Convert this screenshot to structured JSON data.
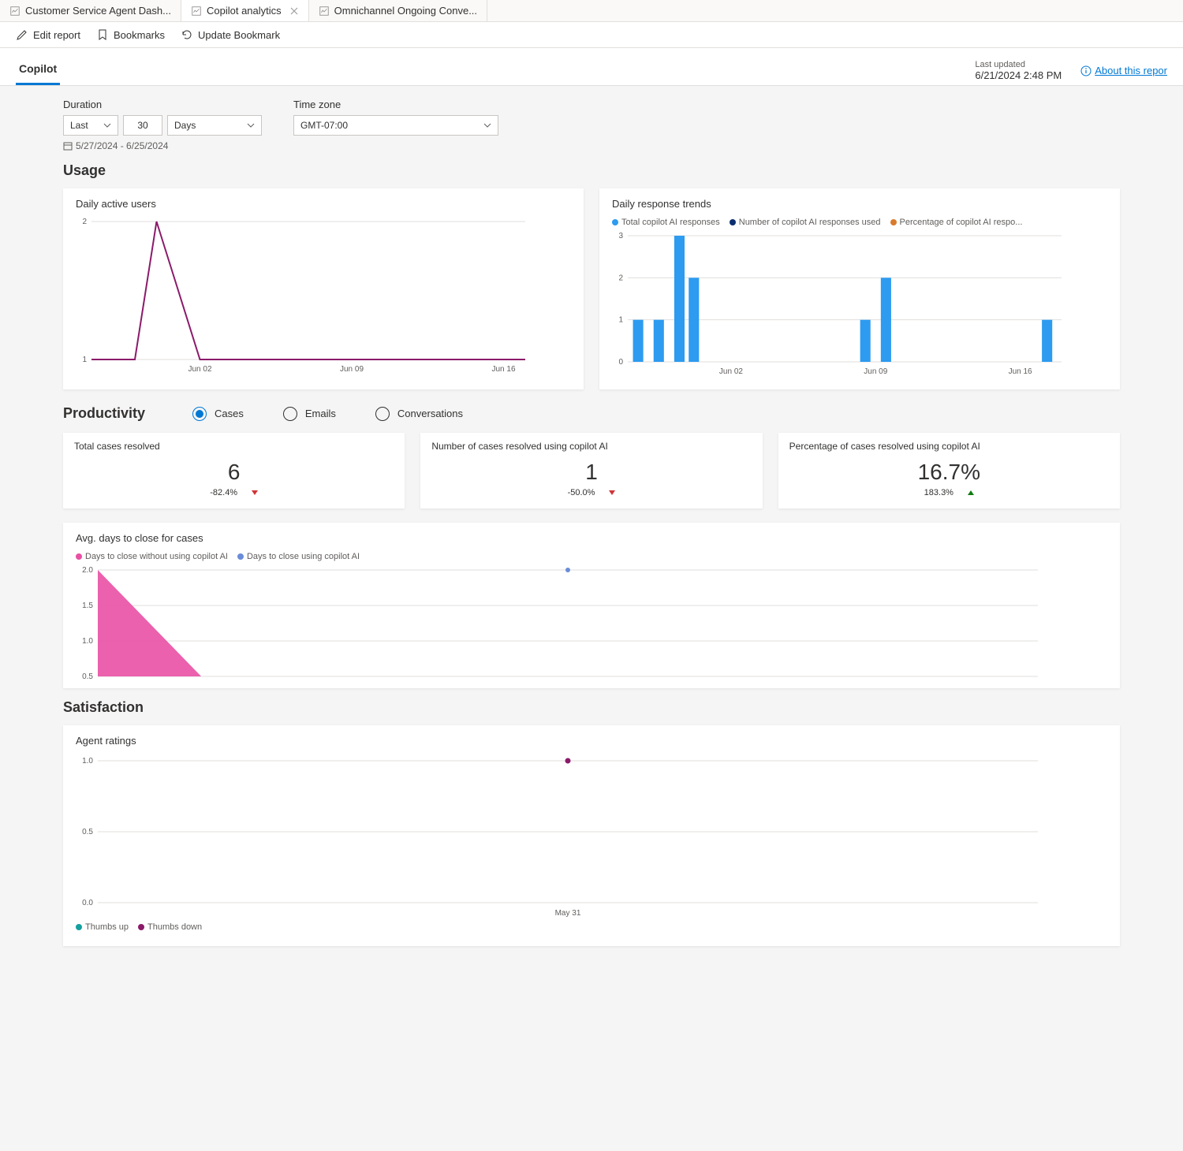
{
  "tabs": [
    {
      "label": "Customer Service Agent Dash...",
      "active": false
    },
    {
      "label": "Copilot analytics",
      "active": true
    },
    {
      "label": "Omnichannel Ongoing Conve...",
      "active": false
    }
  ],
  "toolbar": {
    "edit": "Edit report",
    "bookmarks": "Bookmarks",
    "update": "Update Bookmark"
  },
  "subheader": {
    "tab": "Copilot",
    "last_updated_label": "Last updated",
    "last_updated_value": "6/21/2024 2:48 PM",
    "about": "About this repor"
  },
  "filters": {
    "duration_label": "Duration",
    "last": "Last",
    "count": "30",
    "unit": "Days",
    "timezone_label": "Time zone",
    "timezone": "GMT-07:00",
    "date_range": "5/27/2024 - 6/25/2024"
  },
  "sections": {
    "usage": "Usage",
    "productivity": "Productivity",
    "satisfaction": "Satisfaction"
  },
  "usage": {
    "dau": {
      "title": "Daily active users",
      "type": "line",
      "ylim": [
        1,
        2
      ],
      "yticks": [
        1,
        2
      ],
      "color": "#8b1a6a",
      "xticks": [
        "Jun 02",
        "Jun 09",
        "Jun 16"
      ],
      "points": [
        {
          "x": 0,
          "y": 1
        },
        {
          "x": 1,
          "y": 1
        },
        {
          "x": 2,
          "y": 1
        },
        {
          "x": 3,
          "y": 2
        },
        {
          "x": 4,
          "y": 1.5
        },
        {
          "x": 5,
          "y": 1
        },
        {
          "x": 6,
          "y": 1
        },
        {
          "x": 7,
          "y": 1
        },
        {
          "x": 8,
          "y": 1
        },
        {
          "x": 9,
          "y": 1
        },
        {
          "x": 10,
          "y": 1
        },
        {
          "x": 11,
          "y": 1
        },
        {
          "x": 12,
          "y": 1
        },
        {
          "x": 13,
          "y": 1
        },
        {
          "x": 14,
          "y": 1
        },
        {
          "x": 15,
          "y": 1
        },
        {
          "x": 16,
          "y": 1
        },
        {
          "x": 17,
          "y": 1
        },
        {
          "x": 18,
          "y": 1
        },
        {
          "x": 19,
          "y": 1
        },
        {
          "x": 20,
          "y": 1
        }
      ],
      "grid_color": "#e1dfdd",
      "axis_color": "#a19f9d",
      "label_color": "#605e5c",
      "label_fontsize": 10
    },
    "trends": {
      "title": "Daily response trends",
      "type": "bar",
      "ylim": [
        0,
        3
      ],
      "yticks": [
        0,
        1,
        2,
        3
      ],
      "legend": [
        {
          "label": "Total copilot AI responses",
          "color": "#2d9bf0"
        },
        {
          "label": "Number of copilot AI responses used",
          "color": "#0b2e6f"
        },
        {
          "label": "Percentage of copilot AI respo...",
          "color": "#d97b2e"
        }
      ],
      "xticks": [
        "Jun 02",
        "Jun 09",
        "Jun 16"
      ],
      "bars": [
        {
          "x": 0.5,
          "y": 1
        },
        {
          "x": 1.5,
          "y": 1
        },
        {
          "x": 2.5,
          "y": 3
        },
        {
          "x": 3.2,
          "y": 2
        },
        {
          "x": 11.5,
          "y": 1
        },
        {
          "x": 12.5,
          "y": 2
        },
        {
          "x": 20.3,
          "y": 1
        }
      ],
      "bar_color": "#2d9bf0",
      "bar_width": 0.5,
      "grid_color": "#e1dfdd",
      "axis_color": "#a19f9d"
    }
  },
  "productivity": {
    "radios": [
      {
        "label": "Cases",
        "checked": true
      },
      {
        "label": "Emails",
        "checked": false
      },
      {
        "label": "Conversations",
        "checked": false
      }
    ],
    "kpis": [
      {
        "title": "Total cases resolved",
        "value": "6",
        "delta": "-82.4%",
        "direction": "down"
      },
      {
        "title": "Number of cases resolved using copilot AI",
        "value": "1",
        "delta": "-50.0%",
        "direction": "down"
      },
      {
        "title": "Percentage of cases resolved using copilot AI",
        "value": "16.7%",
        "delta": "183.3%",
        "direction": "up"
      }
    ],
    "close_chart": {
      "title": "Avg. days to close for cases",
      "type": "area",
      "legend": [
        {
          "label": "Days to close without using copilot AI",
          "color": "#e950a4"
        },
        {
          "label": "Days to close using copilot AI",
          "color": "#6a8dd8"
        }
      ],
      "ylim": [
        0.5,
        2.0
      ],
      "yticks": [
        "2.0",
        "1.5",
        "1.0",
        "0.5"
      ]
    }
  },
  "satisfaction": {
    "ratings": {
      "title": "Agent ratings",
      "type": "scatter",
      "ylim": [
        0,
        1
      ],
      "yticks": [
        "1.0",
        "0.5",
        "0.0"
      ],
      "xtick": "May 31",
      "point_color": "#8b1a6a",
      "legend": [
        {
          "label": "Thumbs up",
          "color": "#15a0a0"
        },
        {
          "label": "Thumbs down",
          "color": "#8b1a6a"
        }
      ]
    }
  },
  "colors": {
    "card_bg": "#ffffff",
    "page_bg": "#f5f5f5",
    "primary": "#0078d4",
    "text": "#323130",
    "muted": "#605e5c"
  }
}
